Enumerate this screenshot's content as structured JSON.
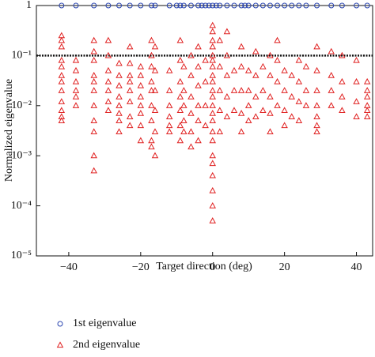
{
  "chart_data": {
    "type": "scatter",
    "xlabel": "Target direction (deg)",
    "ylabel": "Normalized eigenvalue",
    "xlim": [
      -49,
      44.5
    ],
    "xticks": [
      {
        "value": -40,
        "label": "−40"
      },
      {
        "value": -20,
        "label": "−20"
      },
      0,
      20,
      40
    ],
    "ylim": [
      1e-05,
      1
    ],
    "yticks": [
      1,
      {
        "value": 0.1,
        "label": "10⁻¹"
      },
      {
        "value": 0.01,
        "label": "10⁻²"
      },
      {
        "value": 0.001,
        "label": "10⁻³"
      },
      {
        "value": 0.0001,
        "label": "10⁻⁴"
      },
      {
        "value": 1e-05,
        "label": "10⁻⁵"
      }
    ],
    "log_y": true,
    "reference_line": 0.1,
    "series": [
      {
        "name": "1st eigenvalue",
        "color": "#2a45b0",
        "marker": "circle",
        "x": [
          -42,
          -38,
          -33,
          -29,
          -26,
          -23,
          -20,
          -17,
          -16,
          -12,
          -10,
          -9,
          -8,
          -6,
          -4,
          -3,
          -2,
          -1,
          0,
          1,
          2,
          4,
          6,
          8,
          9,
          10,
          12,
          14,
          16,
          18,
          20,
          22,
          24,
          26,
          29,
          33,
          36,
          40,
          43
        ],
        "values": [
          1,
          1,
          1,
          1,
          1,
          1,
          1,
          1,
          1,
          1,
          1,
          1,
          1,
          1,
          1,
          1,
          1,
          1,
          1,
          1,
          1,
          1,
          1,
          1,
          1,
          1,
          1,
          1,
          1,
          1,
          1,
          1,
          1,
          1,
          1,
          1,
          1,
          1,
          1
        ]
      },
      {
        "name": "2nd eigenvalue",
        "color": "#e02020",
        "marker": "triangle",
        "x": [
          -42,
          -42,
          -42,
          -42,
          -42,
          -42,
          -42,
          -42,
          -42,
          -42,
          -42,
          -42,
          -38,
          -38,
          -38,
          -38,
          -38,
          -38,
          -33,
          -33,
          -33,
          -33,
          -33,
          -33,
          -33,
          -33,
          -33,
          -33,
          -33,
          -29,
          -29,
          -29,
          -29,
          -29,
          -29,
          -29,
          -26,
          -26,
          -26,
          -26,
          -26,
          -26,
          -26,
          -26,
          -23,
          -23,
          -23,
          -23,
          -23,
          -23,
          -23,
          -23,
          -20,
          -20,
          -20,
          -20,
          -20,
          -20,
          -20,
          -20,
          -17,
          -17,
          -17,
          -17,
          -17,
          -17,
          -17,
          -17,
          -17,
          -16,
          -16,
          -16,
          -16,
          -16,
          -16,
          -12,
          -12,
          -12,
          -12,
          -12,
          -12,
          -9,
          -9,
          -9,
          -9,
          -9,
          -9,
          -9,
          -8,
          -8,
          -8,
          -8,
          -8,
          -6,
          -6,
          -6,
          -6,
          -6,
          -6,
          -4,
          -4,
          -4,
          -4,
          -4,
          -4,
          -2,
          -2,
          -2,
          -2,
          0,
          0,
          0,
          0,
          0,
          0,
          0,
          0,
          0,
          0,
          0,
          0,
          0,
          0,
          0,
          0,
          0,
          0,
          0,
          0,
          0,
          0,
          2,
          2,
          2,
          2,
          2,
          4,
          4,
          4,
          4,
          4,
          6,
          6,
          6,
          8,
          8,
          8,
          8,
          8,
          10,
          10,
          10,
          10,
          12,
          12,
          12,
          12,
          14,
          14,
          14,
          16,
          16,
          16,
          16,
          16,
          18,
          18,
          18,
          18,
          20,
          20,
          20,
          20,
          22,
          22,
          22,
          24,
          24,
          24,
          24,
          26,
          26,
          26,
          29,
          29,
          29,
          29,
          29,
          29,
          29,
          33,
          33,
          33,
          33,
          36,
          36,
          36,
          36,
          40,
          40,
          40,
          40,
          43,
          43,
          43,
          43,
          43,
          43
        ],
        "values": [
          0.25,
          0.2,
          0.15,
          0.08,
          0.06,
          0.04,
          0.03,
          0.02,
          0.012,
          0.008,
          0.006,
          0.005,
          0.08,
          0.05,
          0.03,
          0.02,
          0.015,
          0.01,
          0.2,
          0.12,
          0.08,
          0.04,
          0.03,
          0.02,
          0.01,
          0.005,
          0.003,
          0.001,
          0.0005,
          0.2,
          0.1,
          0.05,
          0.03,
          0.02,
          0.012,
          0.008,
          0.07,
          0.04,
          0.025,
          0.015,
          0.01,
          0.007,
          0.005,
          0.003,
          0.15,
          0.07,
          0.04,
          0.03,
          0.02,
          0.012,
          0.006,
          0.004,
          0.06,
          0.04,
          0.025,
          0.015,
          0.01,
          0.007,
          0.004,
          0.002,
          0.2,
          0.1,
          0.06,
          0.03,
          0.02,
          0.01,
          0.005,
          0.002,
          0.0015,
          0.15,
          0.05,
          0.02,
          0.008,
          0.003,
          0.001,
          0.05,
          0.02,
          0.01,
          0.006,
          0.004,
          0.003,
          0.2,
          0.08,
          0.03,
          0.015,
          0.008,
          0.004,
          0.002,
          0.06,
          0.02,
          0.01,
          0.005,
          0.003,
          0.1,
          0.04,
          0.015,
          0.007,
          0.003,
          0.0015,
          0.15,
          0.06,
          0.025,
          0.01,
          0.005,
          0.002,
          0.08,
          0.03,
          0.01,
          0.004,
          0.4,
          0.3,
          0.2,
          0.15,
          0.1,
          0.08,
          0.06,
          0.04,
          0.03,
          0.02,
          0.015,
          0.01,
          0.007,
          0.005,
          0.003,
          0.002,
          0.001,
          0.0007,
          0.0004,
          0.0002,
          0.0001,
          5e-05,
          0.2,
          0.06,
          0.02,
          0.008,
          0.003,
          0.3,
          0.1,
          0.04,
          0.015,
          0.006,
          0.05,
          0.02,
          0.008,
          0.15,
          0.06,
          0.02,
          0.007,
          0.003,
          0.05,
          0.02,
          0.01,
          0.005,
          0.12,
          0.04,
          0.015,
          0.006,
          0.06,
          0.02,
          0.008,
          0.1,
          0.04,
          0.015,
          0.007,
          0.003,
          0.2,
          0.08,
          0.03,
          0.01,
          0.05,
          0.02,
          0.008,
          0.004,
          0.04,
          0.015,
          0.006,
          0.08,
          0.03,
          0.012,
          0.005,
          0.06,
          0.02,
          0.01,
          0.15,
          0.05,
          0.02,
          0.01,
          0.006,
          0.004,
          0.003,
          0.12,
          0.04,
          0.02,
          0.01,
          0.1,
          0.03,
          0.015,
          0.008,
          0.08,
          0.03,
          0.012,
          0.006,
          0.03,
          0.02,
          0.015,
          0.01,
          0.008,
          0.006
        ]
      }
    ]
  }
}
